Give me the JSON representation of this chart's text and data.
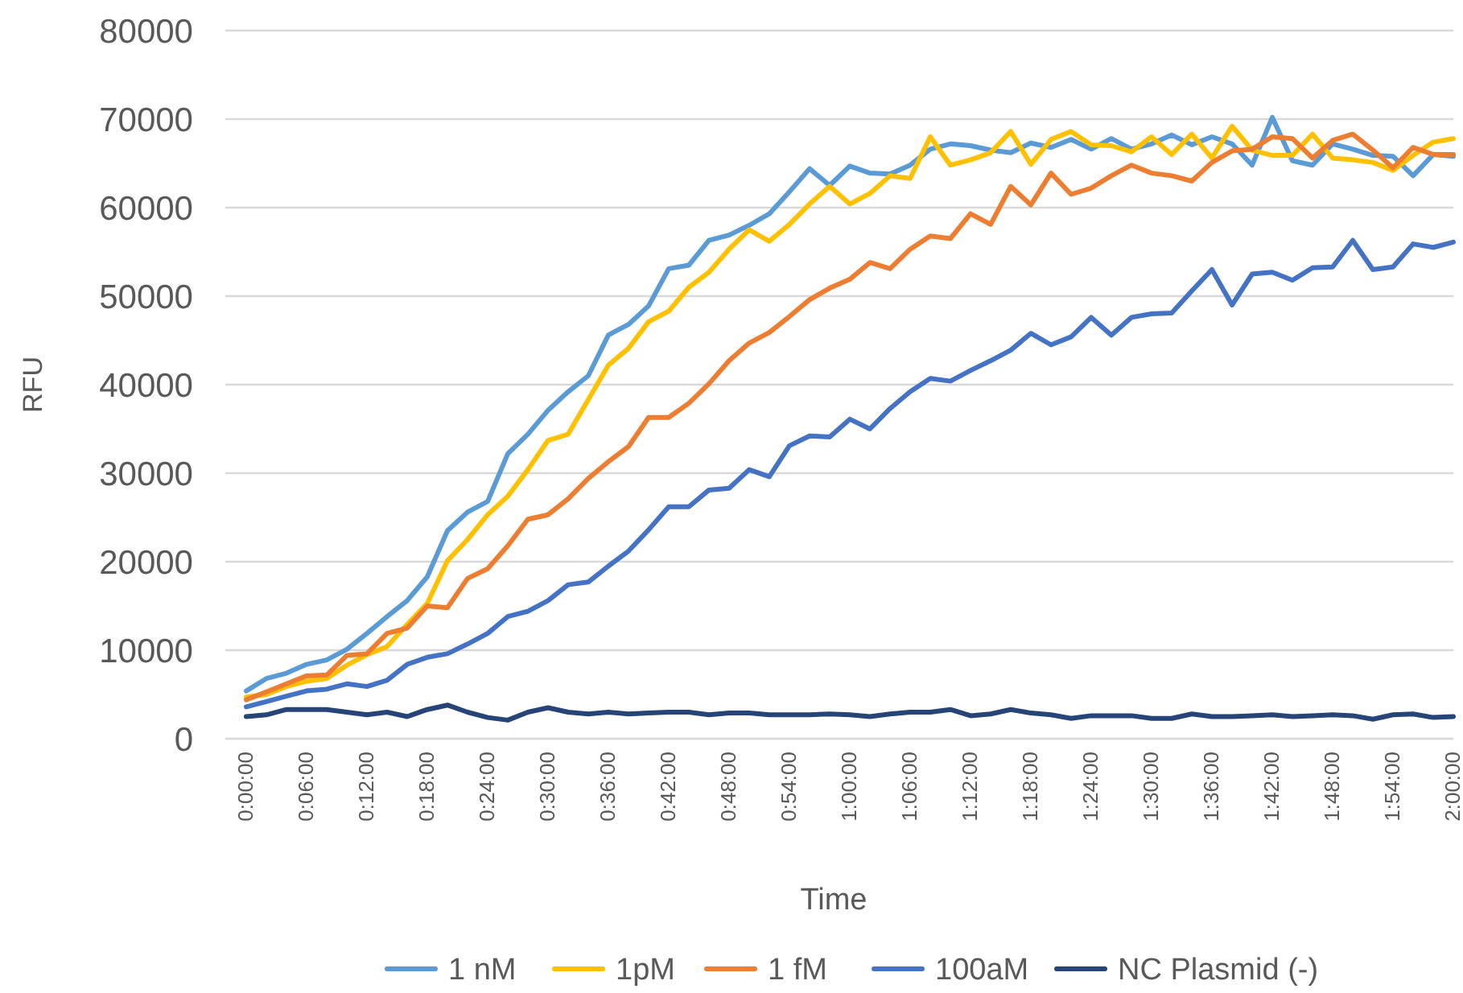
{
  "chart_data": {
    "type": "line",
    "xlabel": "Time",
    "ylabel": "RFU",
    "categories": [
      "0:00:00",
      null,
      null,
      "0:06:00",
      null,
      null,
      "0:12:00",
      null,
      null,
      "0:18:00",
      null,
      null,
      "0:24:00",
      null,
      null,
      "0:30:00",
      null,
      null,
      "0:36:00",
      null,
      null,
      "0:42:00",
      null,
      null,
      "0:48:00",
      null,
      null,
      "0:54:00",
      null,
      null,
      "1:00:00",
      null,
      null,
      "1:06:00",
      null,
      null,
      "1:12:00",
      null,
      null,
      "1:18:00",
      null,
      null,
      "1:24:00",
      null,
      null,
      "1:30:00",
      null,
      null,
      "1:36:00",
      null,
      null,
      "1:42:00",
      null,
      null,
      "1:48:00",
      null,
      null,
      "1:54:00",
      null,
      null,
      "2:00:00"
    ],
    "series": [
      {
        "name": "1 nM",
        "color": "#5b9bd5",
        "values": [
          5400,
          6800,
          7400,
          8400,
          8900,
          10100,
          11900,
          13800,
          15600,
          18300,
          23500,
          25600,
          26800,
          32200,
          34400,
          37100,
          39200,
          41000,
          45600,
          46800,
          48900,
          53100,
          53500,
          56300,
          56900,
          58000,
          59300,
          61800,
          64400,
          62500,
          64700,
          63900,
          63800,
          64800,
          66600,
          67200,
          67000,
          66500,
          66200,
          67300,
          66800,
          67700,
          66600,
          67800,
          66600,
          67200,
          68200,
          67100,
          68000,
          67200,
          64800,
          70200,
          65300,
          64800,
          67200,
          66600,
          65900,
          65800,
          63600,
          66000,
          65800
        ]
      },
      {
        "name": "1pM",
        "color": "#ffc000",
        "values": [
          4700,
          5000,
          5900,
          6500,
          6800,
          8300,
          9500,
          10400,
          12900,
          15300,
          20100,
          22500,
          25300,
          27400,
          30400,
          33700,
          34400,
          38300,
          42200,
          44100,
          47100,
          48300,
          51000,
          52700,
          55300,
          57500,
          56200,
          58100,
          60400,
          62400,
          60400,
          61600,
          63600,
          63300,
          68000,
          64800,
          65400,
          66200,
          68600,
          64900,
          67700,
          68600,
          67100,
          67000,
          66300,
          68000,
          66000,
          68300,
          65600,
          69200,
          66500,
          65900,
          65900,
          68300,
          65600,
          65400,
          65100,
          64200,
          65900,
          67400,
          67800
        ]
      },
      {
        "name": "1 fM",
        "color": "#ed7d31",
        "values": [
          4400,
          5300,
          6200,
          7100,
          7200,
          9400,
          9600,
          11900,
          12500,
          15000,
          14800,
          18100,
          19200,
          21800,
          24800,
          25300,
          27100,
          29400,
          31300,
          33000,
          36300,
          36300,
          37900,
          40100,
          42700,
          44700,
          45900,
          47700,
          49600,
          50900,
          51900,
          53800,
          53100,
          55300,
          56800,
          56500,
          59300,
          58100,
          62400,
          60300,
          63900,
          61500,
          62200,
          63600,
          64800,
          63900,
          63600,
          63000,
          65100,
          66400,
          66600,
          68000,
          67800,
          65600,
          67600,
          68300,
          66500,
          64500,
          66800,
          66000,
          66000
        ]
      },
      {
        "name": "100aM",
        "color": "#4472c4",
        "values": [
          3600,
          4200,
          4800,
          5400,
          5600,
          6200,
          5900,
          6600,
          8400,
          9200,
          9600,
          10700,
          11900,
          13800,
          14400,
          15600,
          17400,
          17700,
          19500,
          21200,
          23600,
          26200,
          26200,
          28100,
          28300,
          30400,
          29600,
          33100,
          34200,
          34100,
          36100,
          35000,
          37300,
          39200,
          40700,
          40400,
          41600,
          42700,
          43900,
          45800,
          44500,
          45400,
          47600,
          45600,
          47600,
          48000,
          48100,
          50600,
          53000,
          49000,
          52500,
          52700,
          51800,
          53200,
          53300,
          56300,
          53000,
          53300,
          55900,
          55500,
          56100
        ]
      },
      {
        "name": "NC Plasmid (-)",
        "color": "#264478",
        "values": [
          2500,
          2700,
          3300,
          3300,
          3300,
          3000,
          2700,
          3000,
          2500,
          3300,
          3800,
          3000,
          2400,
          2100,
          3000,
          3500,
          3000,
          2800,
          3000,
          2800,
          2900,
          3000,
          3000,
          2700,
          2900,
          2900,
          2700,
          2700,
          2700,
          2800,
          2700,
          2500,
          2800,
          3000,
          3000,
          3300,
          2600,
          2800,
          3300,
          2900,
          2700,
          2300,
          2600,
          2600,
          2600,
          2300,
          2300,
          2800,
          2500,
          2500,
          2600,
          2700,
          2500,
          2600,
          2700,
          2600,
          2200,
          2700,
          2800,
          2400,
          2500
        ]
      }
    ],
    "ylim": [
      0,
      80000
    ],
    "yticks": [
      0,
      10000,
      20000,
      30000,
      40000,
      50000,
      60000,
      70000,
      80000
    ],
    "grid": "y",
    "legend": "bottom",
    "marker": "none",
    "line_style": "solid"
  }
}
